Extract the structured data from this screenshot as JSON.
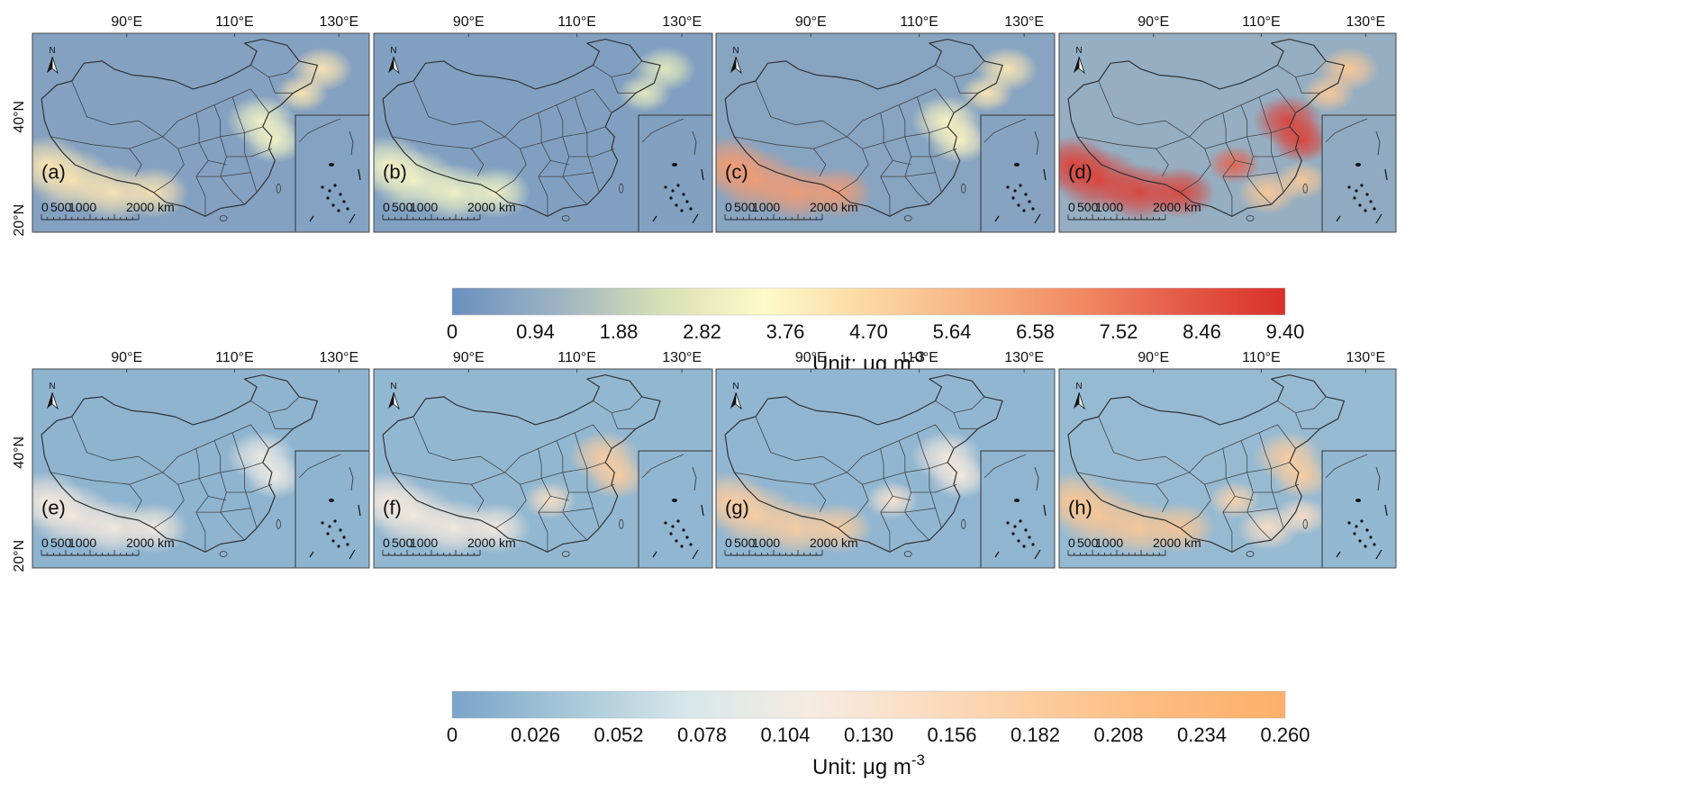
{
  "figure": {
    "rows": [
      {
        "colorbar": {
          "ticks": [
            "0",
            "0.94",
            "1.88",
            "2.82",
            "3.76",
            "4.70",
            "5.64",
            "6.58",
            "7.52",
            "8.46",
            "9.40"
          ],
          "unit_prefix": "Unit: μg m",
          "unit_exp": "-3",
          "colors": [
            "#6a8fc0",
            "#9cb3c2",
            "#d7dfb6",
            "#fdfbc8",
            "#fbd7a3",
            "#f7b283",
            "#f28b65",
            "#e45a48",
            "#d8302b"
          ]
        },
        "panels": [
          {
            "label": "(a)",
            "intensity": 0.3,
            "hotspots": [
              {
                "kind": "belt",
                "v": 0.45
              },
              {
                "kind": "ne",
                "v": 0.45
              },
              {
                "kind": "ncp",
                "v": 0.35
              }
            ]
          },
          {
            "label": "(b)",
            "intensity": 0.22,
            "hotspots": [
              {
                "kind": "belt",
                "v": 0.35
              },
              {
                "kind": "ne",
                "v": 0.3
              }
            ]
          },
          {
            "label": "(c)",
            "intensity": 0.4,
            "hotspots": [
              {
                "kind": "belt",
                "v": 0.7
              },
              {
                "kind": "ne",
                "v": 0.45
              },
              {
                "kind": "ncp",
                "v": 0.4
              }
            ]
          },
          {
            "label": "(d)",
            "intensity": 0.85,
            "hotspots": [
              {
                "kind": "belt",
                "v": 0.95
              },
              {
                "kind": "ncp",
                "v": 0.95
              },
              {
                "kind": "sichuan",
                "v": 0.85
              },
              {
                "kind": "ne",
                "v": 0.55
              },
              {
                "kind": "south",
                "v": 0.55
              }
            ]
          }
        ]
      },
      {
        "colorbar": {
          "ticks": [
            "0",
            "0.026",
            "0.052",
            "0.078",
            "0.104",
            "0.130",
            "0.156",
            "0.182",
            "0.208",
            "0.234",
            "0.260"
          ],
          "unit_prefix": "Unit: μg m",
          "unit_exp": "-3",
          "colors": [
            "#7aa3c9",
            "#a7c8d8",
            "#d7e8ea",
            "#f6ece2",
            "#fbdcc0",
            "#fccb9b",
            "#fdba7d",
            "#fdb06a"
          ]
        },
        "panels": [
          {
            "label": "(e)",
            "intensity": 0.3,
            "hotspots": [
              {
                "kind": "belt",
                "v": 0.45
              },
              {
                "kind": "ncp",
                "v": 0.4
              }
            ]
          },
          {
            "label": "(f)",
            "intensity": 0.45,
            "hotspots": [
              {
                "kind": "belt",
                "v": 0.45
              },
              {
                "kind": "ncp",
                "v": 0.7
              },
              {
                "kind": "sichuan",
                "v": 0.55
              }
            ]
          },
          {
            "label": "(g)",
            "intensity": 0.4,
            "hotspots": [
              {
                "kind": "belt",
                "v": 0.7
              },
              {
                "kind": "ncp",
                "v": 0.45
              },
              {
                "kind": "sichuan",
                "v": 0.5
              }
            ]
          },
          {
            "label": "(h)",
            "intensity": 0.6,
            "hotspots": [
              {
                "kind": "belt",
                "v": 0.75
              },
              {
                "kind": "ncp",
                "v": 0.7
              },
              {
                "kind": "sichuan",
                "v": 0.65
              },
              {
                "kind": "south",
                "v": 0.55
              }
            ]
          }
        ]
      }
    ],
    "axes": {
      "lon_labels": [
        "90°E",
        "110°E",
        "130°E"
      ],
      "lat_labels": [
        "40°N",
        "20°N"
      ]
    },
    "scale_bar": {
      "labels": [
        "0",
        "500",
        "1000",
        "2000 km"
      ]
    },
    "north_arrow": {
      "label": "N"
    },
    "icons": [
      "north-arrow-icon",
      "scale-bar-icon",
      "south-china-sea-inset-icon"
    ]
  }
}
